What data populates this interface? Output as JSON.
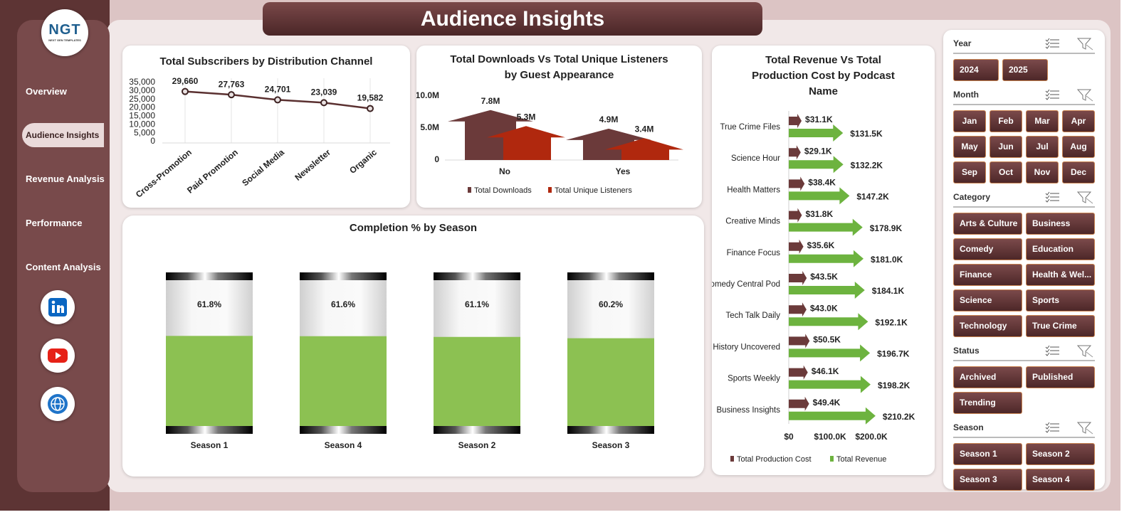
{
  "header": {
    "title": "Audience Insights"
  },
  "logo": {
    "text": "NGT",
    "subtitle": "NEXT GEN TEMPLATES"
  },
  "nav": {
    "items": [
      "Overview",
      "Audience Insights",
      "Revenue Analysis",
      "Performance",
      "Content Analysis"
    ],
    "active": 1
  },
  "chart_data": [
    {
      "type": "line",
      "title": "Total Subscribers by Distribution Channel",
      "categories": [
        "Cross-Promotion",
        "Paid Promotion",
        "Social Media",
        "Newsletter",
        "Organic"
      ],
      "values": [
        29660,
        27763,
        24701,
        23039,
        19582
      ],
      "value_labels": [
        "29,660",
        "27,763",
        "24,701",
        "23,039",
        "19,582"
      ],
      "color": "#5a3030",
      "ylim": [
        0,
        35000
      ],
      "yticks": [
        0,
        {
          "value": 5000,
          "label": "5,000"
        },
        {
          "value": 10000,
          "label": "10,000"
        },
        {
          "value": 15000,
          "label": "15,000"
        },
        {
          "value": 20000,
          "label": "20,000"
        },
        {
          "value": 25000,
          "label": "25,000"
        },
        {
          "value": 30000,
          "label": "30,000"
        },
        {
          "value": 35000,
          "label": "35,000"
        }
      ]
    },
    {
      "type": "bar",
      "title": "Total Downloads Vs Total Unique Listeners by Guest Appearance",
      "categories": [
        "No",
        "Yes"
      ],
      "series": [
        {
          "name": "Total Downloads",
          "color": "#6b3a3a",
          "values": [
            7800000,
            4900000
          ],
          "value_labels": [
            "7.8M",
            "4.9M"
          ]
        },
        {
          "name": "Total Unique Listeners",
          "color": "#b0280e",
          "values": [
            5300000,
            3400000
          ],
          "value_labels": [
            "5.3M",
            "3.4M"
          ]
        }
      ],
      "ylim": [
        0,
        10000000
      ],
      "yticks": [
        0,
        {
          "value": 5000000,
          "label": "5.0M"
        },
        {
          "value": 10000000,
          "label": "10.0M"
        }
      ],
      "legend": "bottom"
    },
    {
      "type": "hbar",
      "title": "Total Revenue Vs Total Production Cost by Podcast Name",
      "categories": [
        "True Crime Files",
        "Science Hour",
        "Health Matters",
        "Creative Minds",
        "Finance Focus",
        "Comedy Central Pod",
        "Tech Talk Daily",
        "History Uncovered",
        "Sports Weekly",
        "Business Insights"
      ],
      "series": [
        {
          "name": "Total Production Cost",
          "color": "#6b3a3a",
          "values": [
            31100,
            29100,
            38400,
            31800,
            35600,
            43500,
            43000,
            50500,
            46100,
            49400
          ],
          "value_labels": [
            "$31.1K",
            "$29.1K",
            "$38.4K",
            "$31.8K",
            "$35.6K",
            "$43.5K",
            "$43.0K",
            "$50.5K",
            "$46.1K",
            "$49.4K"
          ]
        },
        {
          "name": "Total Revenue",
          "color": "#6db33f",
          "values": [
            131500,
            132200,
            147200,
            178900,
            181000,
            184100,
            192100,
            196700,
            198200,
            210200
          ],
          "value_labels": [
            "$131.5K",
            "$132.2K",
            "$147.2K",
            "$178.9K",
            "$181.0K",
            "$184.1K",
            "$192.1K",
            "$196.7K",
            "$198.2K",
            "$210.2K"
          ]
        }
      ],
      "xlim": [
        0,
        250000
      ],
      "xticks": [
        {
          "value": 0,
          "label": "$0"
        },
        {
          "value": 100000,
          "label": "$100.0K"
        },
        {
          "value": 200000,
          "label": "$200.0K"
        }
      ],
      "legend": "bottom"
    },
    {
      "type": "battery",
      "title": "Completion % by Season",
      "categories": [
        "Season 1",
        "Season 4",
        "Season 2",
        "Season 3"
      ],
      "values": [
        61.8,
        61.6,
        61.1,
        60.2
      ],
      "value_labels": [
        "61.8%",
        "61.6%",
        "61.1%",
        "60.2%"
      ],
      "color": "#8cc152",
      "ylim": [
        0,
        100
      ]
    }
  ],
  "slicers": [
    {
      "title": "Year",
      "items": [
        "2024",
        "2025"
      ]
    },
    {
      "title": "Month",
      "items": [
        "Jan",
        "Feb",
        "Mar",
        "Apr",
        "May",
        "Jun",
        "Jul",
        "Aug",
        "Sep",
        "Oct",
        "Nov",
        "Dec"
      ]
    },
    {
      "title": "Category",
      "items": [
        "Arts & Culture",
        "Business",
        "Comedy",
        "Education",
        "Finance",
        "Health & Wel...",
        "Science",
        "Sports",
        "Technology",
        "True Crime"
      ]
    },
    {
      "title": "Status",
      "items": [
        "Archived",
        "Published",
        "Trending"
      ]
    },
    {
      "title": "Season",
      "items": [
        "Season 1",
        "Season 2",
        "Season 3",
        "Season 4"
      ]
    }
  ]
}
